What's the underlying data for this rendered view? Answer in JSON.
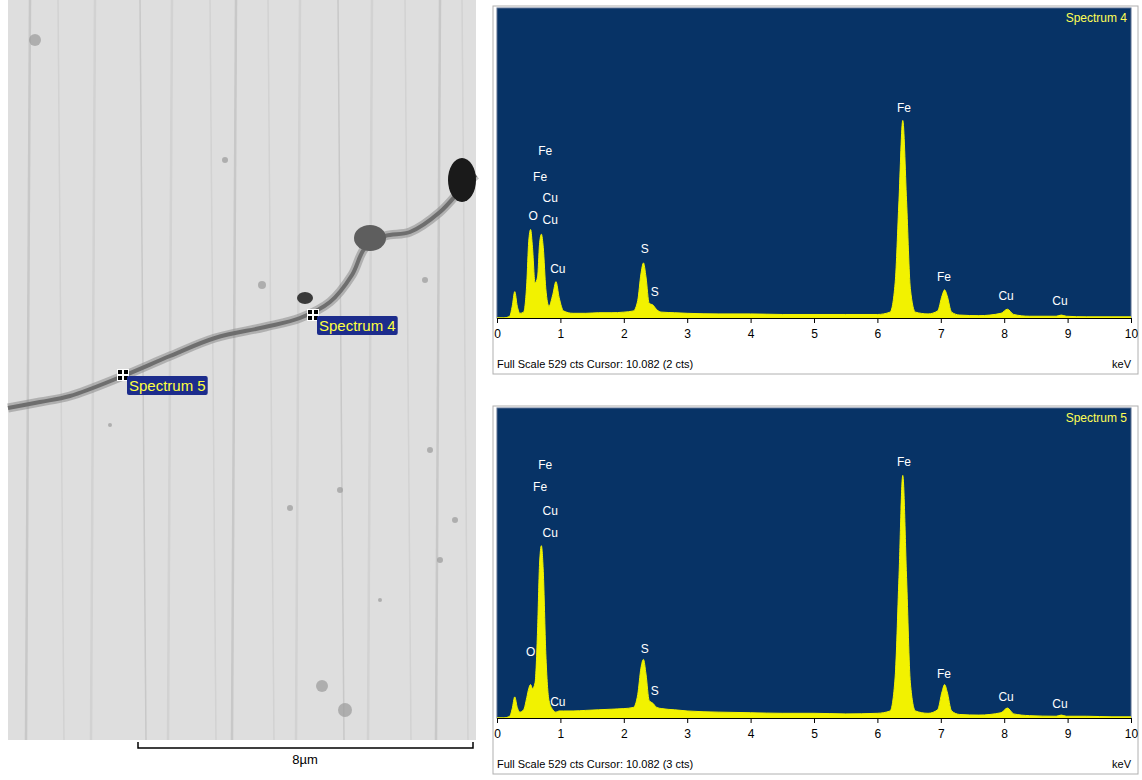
{
  "micrograph": {
    "markers": [
      {
        "label": "Spectrum 4"
      },
      {
        "label": "Spectrum 5"
      }
    ],
    "scale_bar": "8µm"
  },
  "chart_data": [
    {
      "type": "area",
      "title": "Spectrum 4",
      "x_label": "keV",
      "footer": "Full Scale 529 cts Cursor: 10.082 (2 cts)",
      "color": "#f2f200",
      "tick_labels": "x",
      "xlim": [
        0,
        10
      ],
      "xticks": [
        0,
        1,
        2,
        3,
        4,
        5,
        6,
        7,
        8,
        9,
        10
      ],
      "ylim": [
        0,
        529
      ],
      "x": [
        0,
        0.1,
        0.2,
        0.24,
        0.28,
        0.32,
        0.36,
        0.42,
        0.47,
        0.5,
        0.53,
        0.56,
        0.6,
        0.64,
        0.67,
        0.7,
        0.73,
        0.77,
        0.82,
        0.88,
        0.93,
        0.98,
        1.05,
        1.2,
        1.4,
        1.6,
        1.8,
        2.0,
        2.15,
        2.22,
        2.27,
        2.31,
        2.35,
        2.4,
        2.46,
        2.52,
        2.6,
        2.8,
        3.0,
        3.5,
        4.0,
        4.5,
        5.0,
        5.5,
        6.0,
        6.2,
        6.28,
        6.34,
        6.4,
        6.46,
        6.52,
        6.6,
        6.8,
        6.95,
        7.02,
        7.06,
        7.1,
        7.17,
        7.3,
        7.6,
        7.95,
        8.05,
        8.15,
        8.4,
        8.82,
        8.9,
        8.98,
        9.3,
        9.7,
        10.0
      ],
      "values": [
        0,
        0,
        3,
        20,
        45,
        20,
        8,
        10,
        60,
        130,
        151,
        120,
        60,
        70,
        125,
        143,
        120,
        50,
        20,
        40,
        62,
        35,
        12,
        8,
        8,
        9,
        9,
        10,
        12,
        30,
        75,
        94,
        70,
        25,
        22,
        14,
        10,
        9,
        8,
        7,
        7,
        6,
        6,
        6,
        6,
        10,
        60,
        200,
        337,
        200,
        50,
        10,
        7,
        12,
        38,
        48,
        38,
        10,
        5,
        4,
        8,
        15,
        6,
        3,
        3,
        5,
        3,
        2,
        2,
        2
      ],
      "annotations": [
        {
          "text": "Fe",
          "x": 0.76,
          "y": 283
        },
        {
          "text": "Fe",
          "x": 0.68,
          "y": 240
        },
        {
          "text": "Cu",
          "x": 0.84,
          "y": 204
        },
        {
          "text": "Cu",
          "x": 0.84,
          "y": 165
        },
        {
          "text": "O",
          "x": 0.57,
          "y": 173
        },
        {
          "text": "Cu",
          "x": 0.96,
          "y": 82
        },
        {
          "text": "S",
          "x": 2.33,
          "y": 117
        },
        {
          "text": "S",
          "x": 2.49,
          "y": 43
        },
        {
          "text": "Fe",
          "x": 6.42,
          "y": 357
        },
        {
          "text": "Fe",
          "x": 7.05,
          "y": 69
        },
        {
          "text": "Cu",
          "x": 8.03,
          "y": 36
        },
        {
          "text": "Cu",
          "x": 8.88,
          "y": 27
        }
      ]
    },
    {
      "type": "area",
      "title": "Spectrum 5",
      "x_label": "keV",
      "footer": "Full Scale 529 cts Cursor: 10.082 (3 cts)",
      "color": "#f2f200",
      "tick_labels": "x",
      "xlim": [
        0,
        10
      ],
      "xticks": [
        0,
        1,
        2,
        3,
        4,
        5,
        6,
        7,
        8,
        9,
        10
      ],
      "ylim": [
        0,
        529
      ],
      "x": [
        0,
        0.1,
        0.2,
        0.24,
        0.28,
        0.32,
        0.36,
        0.42,
        0.47,
        0.5,
        0.53,
        0.56,
        0.6,
        0.64,
        0.67,
        0.7,
        0.73,
        0.77,
        0.82,
        0.88,
        0.93,
        0.98,
        1.05,
        1.2,
        1.4,
        1.6,
        1.8,
        2.0,
        2.15,
        2.22,
        2.27,
        2.31,
        2.35,
        2.4,
        2.46,
        2.52,
        2.6,
        2.8,
        3.0,
        3.5,
        4.0,
        4.5,
        5.0,
        5.5,
        6.0,
        6.2,
        6.28,
        6.34,
        6.4,
        6.46,
        6.52,
        6.6,
        6.8,
        6.95,
        7.02,
        7.06,
        7.1,
        7.17,
        7.3,
        7.6,
        7.95,
        8.05,
        8.15,
        8.4,
        8.82,
        8.9,
        8.98,
        9.3,
        9.7,
        10.0
      ],
      "values": [
        0,
        0,
        3,
        16,
        36,
        18,
        10,
        14,
        35,
        50,
        57,
        50,
        60,
        150,
        260,
        294,
        250,
        110,
        30,
        14,
        10,
        12,
        12,
        12,
        13,
        14,
        15,
        16,
        18,
        40,
        85,
        100,
        75,
        30,
        25,
        18,
        16,
        14,
        12,
        10,
        9,
        8,
        8,
        7,
        8,
        12,
        70,
        240,
        414,
        240,
        60,
        12,
        8,
        14,
        45,
        57,
        45,
        12,
        6,
        5,
        9,
        17,
        7,
        4,
        3,
        5,
        3,
        3,
        2,
        2
      ],
      "annotations": [
        {
          "text": "Fe",
          "x": 0.76,
          "y": 430
        },
        {
          "text": "Fe",
          "x": 0.68,
          "y": 392
        },
        {
          "text": "Cu",
          "x": 0.84,
          "y": 352
        },
        {
          "text": "Cu",
          "x": 0.84,
          "y": 315
        },
        {
          "text": "O",
          "x": 0.53,
          "y": 112
        },
        {
          "text": "Cu",
          "x": 0.96,
          "y": 26
        },
        {
          "text": "S",
          "x": 2.33,
          "y": 117
        },
        {
          "text": "S",
          "x": 2.49,
          "y": 45
        },
        {
          "text": "Fe",
          "x": 6.42,
          "y": 435
        },
        {
          "text": "Fe",
          "x": 7.05,
          "y": 74
        },
        {
          "text": "Cu",
          "x": 8.03,
          "y": 34
        },
        {
          "text": "Cu",
          "x": 8.88,
          "y": 22
        }
      ]
    }
  ]
}
